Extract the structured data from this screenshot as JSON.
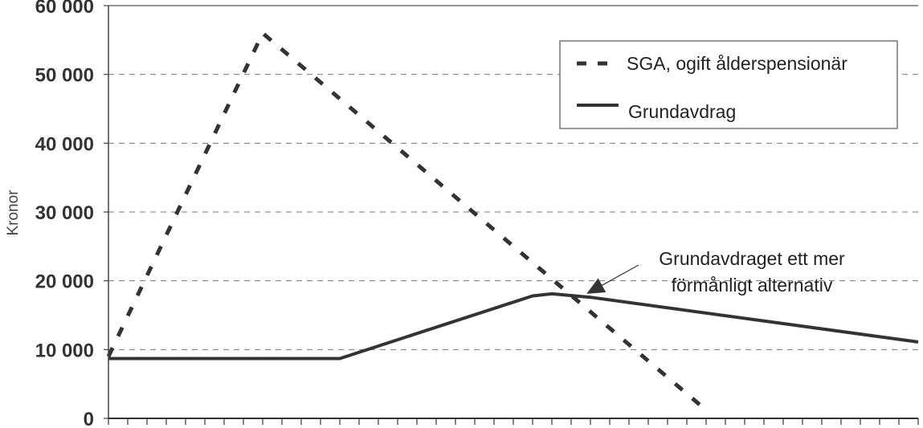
{
  "chart_data": {
    "type": "line",
    "title": "",
    "xlabel": "",
    "ylabel": "Kronor",
    "ylim": [
      0,
      60000
    ],
    "yticks": [
      0,
      10000,
      20000,
      30000,
      40000,
      50000,
      60000
    ],
    "ytick_labels": [
      "0",
      "10 000",
      "20 000",
      "30 000",
      "40 000",
      "50 000",
      "60 000"
    ],
    "x_tick_count": 43,
    "grid": "horizontal-dashed",
    "legend_position": "top-right",
    "series": [
      {
        "name": "SGA, ogift ålderspensionär",
        "style": "dashed",
        "color": "#333333",
        "points": [
          [
            0,
            9000
          ],
          [
            8,
            56000
          ],
          [
            31,
            1200
          ]
        ]
      },
      {
        "name": "Grundavdrag",
        "style": "solid",
        "color": "#333333",
        "points": [
          [
            0,
            8700
          ],
          [
            12,
            8700
          ],
          [
            22,
            17800
          ],
          [
            23,
            18100
          ],
          [
            25,
            17600
          ],
          [
            42,
            11100
          ]
        ]
      }
    ],
    "annotation": {
      "lines": [
        "Grundavdraget ett mer",
        "förmånligt alternativ"
      ],
      "point": [
        24.8,
        18100
      ]
    }
  }
}
